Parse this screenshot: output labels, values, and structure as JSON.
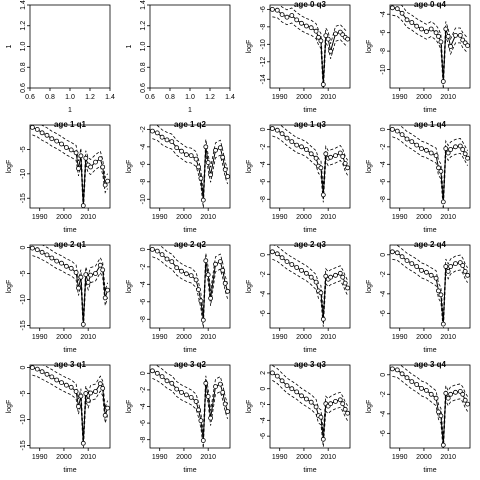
{
  "figure": {
    "background": "#ffffff",
    "line_color": "#000000"
  },
  "chart_data": [
    {
      "type": "scatter",
      "title": "",
      "xlabel": "1",
      "ylabel": "1",
      "xlim": [
        0.6,
        1.4
      ],
      "ylim": [
        0.6,
        1.4
      ],
      "xticks": [
        "0.6",
        "0.8",
        "1.0",
        "1.2",
        "1.4"
      ],
      "yticks": [
        "0.6",
        "0.8",
        "1.0",
        "1.2",
        "1.4"
      ],
      "empty": true
    },
    {
      "type": "scatter",
      "title": "",
      "xlabel": "1",
      "ylabel": "1",
      "xlim": [
        0.6,
        1.4
      ],
      "ylim": [
        0.6,
        1.4
      ],
      "xticks": [
        "0.6",
        "0.8",
        "1.0",
        "1.2",
        "1.4"
      ],
      "yticks": [
        "0.6",
        "0.8",
        "1.0",
        "1.2",
        "1.4"
      ],
      "empty": true
    },
    {
      "type": "line",
      "title": "age 0 q3",
      "xlabel": "time",
      "ylabel": "logF",
      "xlim": [
        1986,
        2019
      ],
      "ylim": [
        -15,
        -5.5
      ],
      "xticks": [
        "1990",
        "2000",
        "2010"
      ],
      "yticks": [
        "-14",
        "-12",
        "-10",
        "-8",
        "-6"
      ],
      "x": [
        1987,
        1989,
        1991,
        1993,
        1995,
        1997,
        1999,
        2001,
        2003,
        2005,
        2006,
        2007,
        2008,
        2009,
        2010,
        2011,
        2013,
        2015,
        2016,
        2017,
        2018
      ],
      "series": [
        {
          "values": [
            -6,
            -6.1,
            -6.6,
            -6.9,
            -6.7,
            -7.2,
            -7.6,
            -7.9,
            -8.1,
            -8.5,
            -9.2,
            -9.6,
            -14.6,
            -9,
            -9.4,
            -10.8,
            -8.8,
            -8.6,
            -8.9,
            -9.2,
            -9.4
          ]
        }
      ]
    },
    {
      "type": "line",
      "title": "age 0 q4",
      "xlabel": "time",
      "ylabel": "logF",
      "xlim": [
        1986,
        2019
      ],
      "ylim": [
        -12,
        -3
      ],
      "xticks": [
        "1990",
        "2000",
        "2010"
      ],
      "yticks": [
        "-10",
        "-8",
        "-6",
        "-4"
      ],
      "x": [
        1987,
        1989,
        1991,
        1993,
        1995,
        1997,
        1999,
        2001,
        2003,
        2005,
        2006,
        2007,
        2008,
        2009,
        2010,
        2011,
        2013,
        2015,
        2016,
        2017,
        2018
      ],
      "series": [
        {
          "values": [
            -3.3,
            -3.4,
            -3.9,
            -4.6,
            -4.9,
            -5.3,
            -5.6,
            -5.9,
            -5.6,
            -6,
            -6.4,
            -7,
            -11.3,
            -5.6,
            -6.4,
            -7.5,
            -6.3,
            -6.3,
            -6.8,
            -7.1,
            -7.4
          ]
        }
      ]
    },
    {
      "type": "line",
      "title": "age 1 q1",
      "xlabel": "time",
      "ylabel": "logF",
      "xlim": [
        1986,
        2019
      ],
      "ylim": [
        -17,
        0
      ],
      "xticks": [
        "1990",
        "2000",
        "2010"
      ],
      "yticks": [
        "-15",
        "-10",
        "-5"
      ],
      "x": [
        1987,
        1989,
        1991,
        1993,
        1995,
        1997,
        1999,
        2001,
        2003,
        2005,
        2006,
        2007,
        2008,
        2009,
        2010,
        2011,
        2013,
        2015,
        2016,
        2017,
        2018
      ],
      "series": [
        {
          "values": [
            -0.5,
            -0.9,
            -1.6,
            -2.1,
            -2.8,
            -3.3,
            -3.9,
            -4.6,
            -5.1,
            -5.7,
            -8.9,
            -6.3,
            -16.5,
            -6.8,
            -8.2,
            -8.6,
            -7.6,
            -6.9,
            -8.6,
            -12.3,
            -11.5
          ]
        }
      ]
    },
    {
      "type": "line",
      "title": "age 1 q2",
      "xlabel": "time",
      "ylabel": "logF",
      "xlim": [
        1986,
        2019
      ],
      "ylim": [
        -11,
        -1.5
      ],
      "xticks": [
        "1990",
        "2000",
        "2010"
      ],
      "yticks": [
        "-10",
        "-8",
        "-6",
        "-4",
        "-2"
      ],
      "x": [
        1987,
        1989,
        1991,
        1993,
        1995,
        1997,
        1999,
        2001,
        2003,
        2005,
        2006,
        2007,
        2008,
        2009,
        2010,
        2011,
        2013,
        2015,
        2016,
        2017,
        2018
      ],
      "series": [
        {
          "values": [
            -2.2,
            -2.4,
            -2.9,
            -3.2,
            -3.4,
            -4.1,
            -4.5,
            -4.9,
            -5,
            -5.4,
            -6.3,
            -7.6,
            -10.1,
            -4,
            -5.8,
            -7.2,
            -4.4,
            -4.1,
            -5.2,
            -6.6,
            -7.4
          ]
        }
      ]
    },
    {
      "type": "line",
      "title": "age 1 q3",
      "xlabel": "time",
      "ylabel": "logF",
      "xlim": [
        1986,
        2019
      ],
      "ylim": [
        -9,
        0.5
      ],
      "xticks": [
        "1990",
        "2000",
        "2010"
      ],
      "yticks": [
        "-8",
        "-6",
        "-4",
        "-2",
        "0"
      ],
      "x": [
        1987,
        1989,
        1991,
        1993,
        1995,
        1997,
        1999,
        2001,
        2003,
        2005,
        2006,
        2007,
        2008,
        2009,
        2010,
        2011,
        2013,
        2015,
        2016,
        2017,
        2018
      ],
      "series": [
        {
          "values": [
            0.1,
            -0.1,
            -0.5,
            -1,
            -1.4,
            -1.8,
            -2,
            -2.3,
            -2.8,
            -3.3,
            -4.2,
            -4.4,
            -7.5,
            -2.8,
            -3.3,
            -3.2,
            -3,
            -2.7,
            -3.1,
            -3.9,
            -4.4
          ]
        }
      ]
    },
    {
      "type": "line",
      "title": "age 1 q4",
      "xlabel": "time",
      "ylabel": "logF",
      "xlim": [
        1986,
        2019
      ],
      "ylim": [
        -9,
        0.5
      ],
      "xticks": [
        "1990",
        "2000",
        "2010"
      ],
      "yticks": [
        "-8",
        "-6",
        "-4",
        "-2",
        "0"
      ],
      "x": [
        1987,
        1989,
        1991,
        1993,
        1995,
        1997,
        1999,
        2001,
        2003,
        2005,
        2006,
        2007,
        2008,
        2009,
        2010,
        2011,
        2013,
        2015,
        2016,
        2017,
        2018
      ],
      "series": [
        {
          "values": [
            0,
            -0.2,
            -0.6,
            -1.1,
            -1.4,
            -1.8,
            -2.2,
            -2.4,
            -2.7,
            -3,
            -4.4,
            -4.8,
            -8.3,
            -2.2,
            -2.7,
            -2.3,
            -2,
            -1.9,
            -2.3,
            -2.8,
            -3.3
          ]
        }
      ]
    },
    {
      "type": "line",
      "title": "age 2 q1",
      "xlabel": "time",
      "ylabel": "logF",
      "xlim": [
        1986,
        2019
      ],
      "ylim": [
        -15.5,
        0.5
      ],
      "xticks": [
        "1990",
        "2000",
        "2010"
      ],
      "yticks": [
        "-15",
        "-10",
        "-5",
        "0"
      ],
      "x": [
        1987,
        1989,
        1991,
        1993,
        1995,
        1997,
        1999,
        2001,
        2003,
        2005,
        2006,
        2007,
        2008,
        2009,
        2010,
        2011,
        2013,
        2015,
        2016,
        2017,
        2018
      ],
      "series": [
        {
          "values": [
            -0.1,
            -0.4,
            -0.9,
            -1.4,
            -2,
            -2.6,
            -3,
            -3.6,
            -4,
            -4.8,
            -7.8,
            -5.7,
            -14.8,
            -5.2,
            -6.7,
            -5.3,
            -5,
            -3.4,
            -4.3,
            -9.7,
            -8.2
          ]
        }
      ]
    },
    {
      "type": "line",
      "title": "age 2 q2",
      "xlabel": "time",
      "ylabel": "logF",
      "xlim": [
        1986,
        2019
      ],
      "ylim": [
        -9,
        0.5
      ],
      "xticks": [
        "1990",
        "2000",
        "2010"
      ],
      "yticks": [
        "-8",
        "-6",
        "-4",
        "-2",
        "0"
      ],
      "x": [
        1987,
        1989,
        1991,
        1993,
        1995,
        1997,
        1999,
        2001,
        2003,
        2005,
        2006,
        2007,
        2008,
        2009,
        2010,
        2011,
        2013,
        2015,
        2016,
        2017,
        2018
      ],
      "series": [
        {
          "values": [
            0,
            -0.2,
            -0.6,
            -1.1,
            -1.4,
            -2.1,
            -2.5,
            -2.8,
            -3,
            -3.5,
            -4.6,
            -5.9,
            -8.1,
            -1.3,
            -2.9,
            -5.6,
            -1.7,
            -1.4,
            -2.4,
            -3.9,
            -4.8
          ]
        }
      ]
    },
    {
      "type": "line",
      "title": "age 2 q3",
      "xlabel": "time",
      "ylabel": "logF",
      "xlim": [
        1986,
        2019
      ],
      "ylim": [
        -7.5,
        1
      ],
      "xticks": [
        "1990",
        "2000",
        "2010"
      ],
      "yticks": [
        "-6",
        "-4",
        "-2",
        "0"
      ],
      "x": [
        1987,
        1989,
        1991,
        1993,
        1995,
        1997,
        1999,
        2001,
        2003,
        2005,
        2006,
        2007,
        2008,
        2009,
        2010,
        2011,
        2013,
        2015,
        2016,
        2017,
        2018
      ],
      "series": [
        {
          "values": [
            0.3,
            0.1,
            -0.3,
            -0.7,
            -1,
            -1.3,
            -1.6,
            -1.9,
            -2.3,
            -2.8,
            -3.7,
            -3.9,
            -6.6,
            -2.2,
            -2.5,
            -2.3,
            -2.1,
            -1.9,
            -2.3,
            -2.9,
            -3.4
          ]
        }
      ]
    },
    {
      "type": "line",
      "title": "age 2 q4",
      "xlabel": "time",
      "ylabel": "logF",
      "xlim": [
        1986,
        2019
      ],
      "ylim": [
        -7.5,
        1
      ],
      "xticks": [
        "1990",
        "2000",
        "2010"
      ],
      "yticks": [
        "-6",
        "-4",
        "-2",
        "0"
      ],
      "x": [
        1987,
        1989,
        1991,
        1993,
        1995,
        1997,
        1999,
        2001,
        2003,
        2005,
        2006,
        2007,
        2008,
        2009,
        2010,
        2011,
        2013,
        2015,
        2016,
        2017,
        2018
      ],
      "series": [
        {
          "values": [
            0.3,
            0.2,
            -0.2,
            -0.6,
            -0.9,
            -1.2,
            -1.6,
            -1.8,
            -2.1,
            -2.4,
            -3.7,
            -4.1,
            -7.1,
            -1.2,
            -1.7,
            -1.2,
            -0.9,
            -0.8,
            -1.1,
            -1.7,
            -2.1
          ]
        }
      ]
    },
    {
      "type": "line",
      "title": "age 3 q1",
      "xlabel": "time",
      "ylabel": "logF",
      "xlim": [
        1986,
        2019
      ],
      "ylim": [
        -15.5,
        0.5
      ],
      "xticks": [
        "1990",
        "2000",
        "2010"
      ],
      "yticks": [
        "-15",
        "-10",
        "-5",
        "0"
      ],
      "x": [
        1987,
        1989,
        1991,
        1993,
        1995,
        1997,
        1999,
        2001,
        2003,
        2005,
        2006,
        2007,
        2008,
        2009,
        2010,
        2011,
        2013,
        2015,
        2016,
        2017,
        2018
      ],
      "series": [
        {
          "values": [
            0,
            -0.3,
            -0.8,
            -1.3,
            -1.8,
            -2.4,
            -2.9,
            -3.4,
            -3.8,
            -4.6,
            -7.5,
            -5.5,
            -14.6,
            -5,
            -6.3,
            -4.9,
            -4.6,
            -3.1,
            -4,
            -9.2,
            -7.8
          ]
        }
      ]
    },
    {
      "type": "line",
      "title": "age 3 q2",
      "xlabel": "time",
      "ylabel": "logF",
      "xlim": [
        1986,
        2019
      ],
      "ylim": [
        -9,
        1
      ],
      "xticks": [
        "1990",
        "2000",
        "2010"
      ],
      "yticks": [
        "-8",
        "-6",
        "-4",
        "-2",
        "0"
      ],
      "x": [
        1987,
        1989,
        1991,
        1993,
        1995,
        1997,
        1999,
        2001,
        2003,
        2005,
        2006,
        2007,
        2008,
        2009,
        2010,
        2011,
        2013,
        2015,
        2016,
        2017,
        2018
      ],
      "series": [
        {
          "values": [
            0.3,
            0,
            -0.4,
            -0.9,
            -1.2,
            -1.9,
            -2.3,
            -2.6,
            -2.9,
            -3.4,
            -4.4,
            -5.7,
            -8.1,
            -1.2,
            -2.8,
            -5.4,
            -1.6,
            -1.3,
            -2.3,
            -3.7,
            -4.6
          ]
        }
      ]
    },
    {
      "type": "line",
      "title": "age 3 q3",
      "xlabel": "time",
      "ylabel": "logF",
      "xlim": [
        1986,
        2019
      ],
      "ylim": [
        -7.5,
        3
      ],
      "xticks": [
        "1990",
        "2000",
        "2010"
      ],
      "yticks": [
        "-6",
        "-4",
        "-2",
        "0",
        "2"
      ],
      "x": [
        1987,
        1989,
        1991,
        1993,
        1995,
        1997,
        1999,
        2001,
        2003,
        2005,
        2006,
        2007,
        2008,
        2009,
        2010,
        2011,
        2013,
        2015,
        2016,
        2017,
        2018
      ],
      "series": [
        {
          "values": [
            2,
            1.6,
            1,
            0.4,
            0,
            -0.4,
            -0.9,
            -1.3,
            -1.7,
            -2.3,
            -3.4,
            -3.6,
            -6.4,
            -1.9,
            -2.2,
            -1.9,
            -1.6,
            -1.4,
            -1.9,
            -2.6,
            -3.1
          ]
        }
      ]
    },
    {
      "type": "line",
      "title": "age 3 q4",
      "xlabel": "time",
      "ylabel": "logF",
      "xlim": [
        1986,
        2019
      ],
      "ylim": [
        -7.5,
        1
      ],
      "xticks": [
        "1990",
        "2000",
        "2010"
      ],
      "yticks": [
        "-6",
        "-4",
        "-2",
        "0"
      ],
      "x": [
        1987,
        1989,
        1991,
        1993,
        1995,
        1997,
        1999,
        2001,
        2003,
        2005,
        2006,
        2007,
        2008,
        2009,
        2010,
        2011,
        2013,
        2015,
        2016,
        2017,
        2018
      ],
      "series": [
        {
          "values": [
            0.6,
            0.5,
            0.1,
            -0.3,
            -0.7,
            -1,
            -1.4,
            -1.6,
            -2,
            -2.4,
            -3.8,
            -4.2,
            -7.2,
            -1.9,
            -2.4,
            -2,
            -1.8,
            -1.7,
            -2,
            -2.6,
            -3
          ]
        }
      ]
    }
  ]
}
